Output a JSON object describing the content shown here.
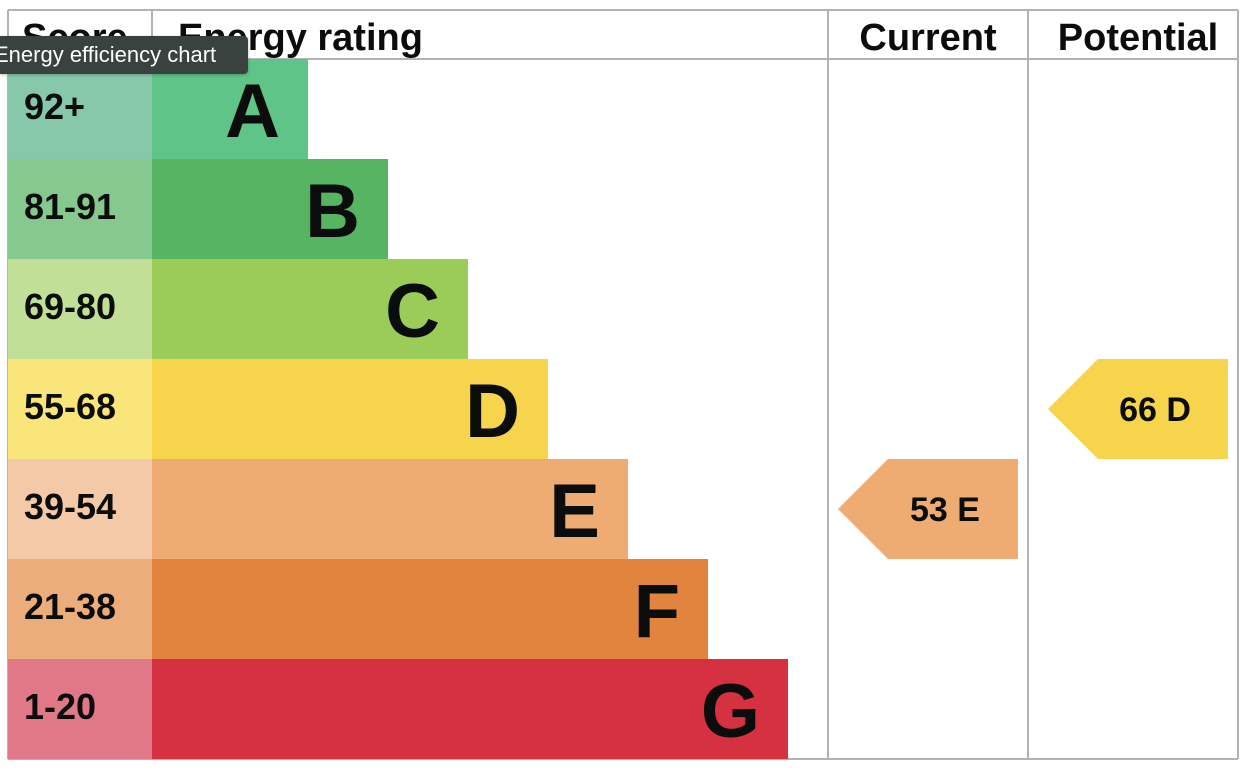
{
  "headers": {
    "score": "Score",
    "rating": "Energy rating",
    "current": "Current",
    "potential": "Potential"
  },
  "tooltip": "Energy efficiency chart",
  "chart_data": {
    "type": "bar",
    "categories": [
      "A",
      "B",
      "C",
      "D",
      "E",
      "F",
      "G"
    ],
    "score_ranges": [
      "92+",
      "81-91",
      "69-80",
      "55-68",
      "39-54",
      "21-38",
      "1-20"
    ],
    "colors": [
      "#5ec488",
      "#55b563",
      "#9ccc58",
      "#f6d44b",
      "#efac72",
      "#e1853e",
      "#d63141"
    ],
    "score_colors": [
      "#86c8a9",
      "#86c98e",
      "#c2df98",
      "#fae57b",
      "#f4c9a7",
      "#ebad79",
      "#e07887"
    ],
    "current": {
      "value": 53,
      "band": "E",
      "label": "53  E"
    },
    "potential": {
      "value": 66,
      "band": "D",
      "label": "66  D"
    }
  }
}
